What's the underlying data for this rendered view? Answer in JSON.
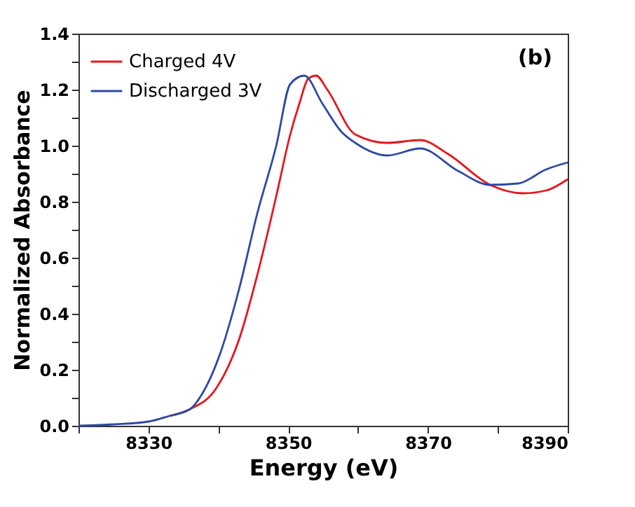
{
  "chart_data": {
    "type": "line",
    "xlabel": "Energy (eV)",
    "ylabel": "Normalized Absorbance",
    "annotations": [
      "(b)"
    ],
    "xlim": [
      8320,
      8390
    ],
    "ylim": [
      0,
      1.4
    ],
    "xticks": [
      {
        "value": 8320,
        "label": null
      },
      8330,
      {
        "value": 8340,
        "label": null
      },
      8350,
      {
        "value": 8360,
        "label": null
      },
      8370,
      {
        "value": 8380,
        "label": null
      },
      8390
    ],
    "yticks": [
      {
        "value": 0,
        "label": "0.0"
      },
      {
        "value": 0.1,
        "label": null
      },
      0.2,
      {
        "value": 0.3,
        "label": null
      },
      0.4,
      {
        "value": 0.5,
        "label": null
      },
      0.6,
      {
        "value": 0.7,
        "label": null
      },
      0.8,
      {
        "value": 0.9,
        "label": null
      },
      {
        "value": 1,
        "label": "1.0"
      },
      {
        "value": 1.1,
        "label": null
      },
      1.2,
      {
        "value": 1.3,
        "label": null
      },
      1.4
    ],
    "grid": false,
    "legend": "top left",
    "marker": "none",
    "line_style": "solid",
    "series": [
      {
        "name": "Charged 4V",
        "color": "#e8151b",
        "x": [
          8333,
          8336,
          8339.6,
          8343,
          8345.6,
          8348.3,
          8350.3,
          8351.6,
          8352.9,
          8354,
          8355.6,
          8359.6,
          8364.2,
          8368.9,
          8372.9,
          8378.9,
          8383.6,
          8386.9,
          8390
        ],
        "values": [
          0.035,
          0.06,
          0.13,
          0.31,
          0.54,
          0.82,
          1.04,
          1.15,
          1.24,
          1.25,
          1.2,
          1.04,
          1.01,
          1.02,
          0.97,
          0.86,
          0.83,
          0.84,
          0.88
        ]
      },
      {
        "name": "Discharged 3V",
        "color": "#2f49a0",
        "x": [
          8320,
          8325,
          8330,
          8333,
          8336,
          8337.6,
          8340.3,
          8343,
          8345.6,
          8348.3,
          8350.3,
          8352.3,
          8354.9,
          8357.6,
          8359.6,
          8364.2,
          8368.9,
          8374.3,
          8378.9,
          8382.9,
          8386.9,
          8390
        ],
        "values": [
          0,
          0.005,
          0.015,
          0.035,
          0.06,
          0.11,
          0.26,
          0.49,
          0.76,
          1.0,
          1.22,
          1.25,
          1.15,
          1.05,
          1.01,
          0.965,
          0.99,
          0.91,
          0.86,
          0.865,
          0.915,
          0.94
        ]
      }
    ]
  }
}
